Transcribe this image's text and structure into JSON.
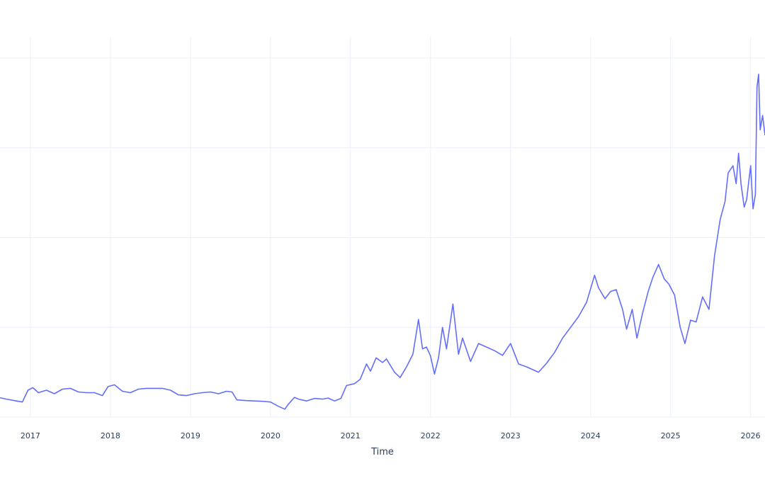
{
  "chart_data": {
    "type": "line",
    "xlabel": "Time",
    "ylabel": "",
    "x_tick_labels": [
      "2017",
      "2018",
      "2019",
      "2020",
      "2021",
      "2022",
      "2023",
      "2024",
      "2025",
      "2026"
    ],
    "xlim": [
      2016.62,
      2026.18
    ],
    "ylim": [
      0,
      100
    ],
    "ygrid_values": [
      0,
      25,
      50,
      75,
      100
    ],
    "grid": true,
    "colors": {
      "line": "#636efa",
      "grid": "#ebf0f8",
      "text": "#2a3f5f"
    },
    "series": [
      {
        "x": [
          2016.62,
          2016.7,
          2016.8,
          2016.9,
          2016.97,
          2017.03,
          2017.1,
          2017.2,
          2017.3,
          2017.4,
          2017.5,
          2017.6,
          2017.7,
          2017.8,
          2017.9,
          2017.97,
          2018.05,
          2018.15,
          2018.25,
          2018.35,
          2018.45,
          2018.55,
          2018.65,
          2018.75,
          2018.85,
          2018.95,
          2019.05,
          2019.15,
          2019.25,
          2019.35,
          2019.45,
          2019.52,
          2019.58,
          2019.7,
          2019.8,
          2019.9,
          2020.0,
          2020.1,
          2020.18,
          2020.22,
          2020.3,
          2020.35,
          2020.45,
          2020.55,
          2020.65,
          2020.72,
          2020.8,
          2020.88,
          2020.95,
          2021.05,
          2021.12,
          2021.2,
          2021.25,
          2021.32,
          2021.4,
          2021.45,
          2021.55,
          2021.62,
          2021.7,
          2021.78,
          2021.85,
          2021.9,
          2021.95,
          2022.0,
          2022.05,
          2022.1,
          2022.15,
          2022.2,
          2022.28,
          2022.35,
          2022.4,
          2022.5,
          2022.6,
          2022.7,
          2022.8,
          2022.9,
          2023.0,
          2023.1,
          2023.2,
          2023.3,
          2023.35,
          2023.45,
          2023.55,
          2023.65,
          2023.75,
          2023.85,
          2023.95,
          2024.05,
          2024.1,
          2024.18,
          2024.25,
          2024.32,
          2024.4,
          2024.45,
          2024.52,
          2024.58,
          2024.65,
          2024.72,
          2024.78,
          2024.85,
          2024.92,
          2024.98,
          2025.05,
          2025.12,
          2025.18,
          2025.25,
          2025.32,
          2025.4,
          2025.48,
          2025.55,
          2025.62,
          2025.68,
          2025.72,
          2025.78,
          2025.82,
          2025.85,
          2025.88,
          2025.92,
          2025.95,
          2026.0,
          2026.03,
          2026.06,
          2026.08,
          2026.1,
          2026.12,
          2026.15,
          2026.18
        ],
        "y": [
          5.4,
          5.0,
          4.6,
          4.2,
          7.5,
          8.2,
          6.8,
          7.5,
          6.5,
          7.8,
          8.0,
          7.0,
          6.8,
          6.8,
          6.0,
          8.5,
          9.0,
          7.2,
          6.8,
          7.8,
          8.0,
          8.0,
          8.0,
          7.5,
          6.2,
          6.0,
          6.5,
          6.8,
          7.0,
          6.5,
          7.2,
          7.0,
          4.8,
          4.6,
          4.5,
          4.4,
          4.2,
          3.0,
          2.2,
          3.5,
          5.5,
          5.0,
          4.5,
          5.2,
          5.0,
          5.3,
          4.5,
          5.2,
          8.8,
          9.3,
          10.5,
          14.8,
          12.8,
          16.5,
          15.2,
          16.2,
          12.5,
          11.0,
          14.0,
          17.5,
          27.2,
          19.0,
          19.5,
          17.0,
          12.0,
          16.5,
          25.0,
          19.0,
          31.5,
          17.5,
          22.0,
          15.5,
          20.5,
          19.5,
          18.5,
          17.2,
          20.5,
          14.8,
          14.0,
          13.0,
          12.5,
          15.0,
          18.0,
          22.0,
          25.0,
          28.0,
          32.0,
          39.5,
          36.0,
          33.0,
          35.0,
          35.5,
          30.0,
          24.5,
          30.0,
          22.0,
          29.0,
          35.0,
          39.0,
          42.5,
          38.5,
          37.0,
          34.0,
          25.0,
          20.5,
          27.0,
          26.5,
          33.5,
          30.0,
          45.0,
          55.0,
          60.0,
          68.0,
          70.0,
          65.0,
          73.5,
          65.0,
          58.5,
          60.5,
          70.0,
          58.0,
          62.0,
          92.0,
          95.5,
          80.0,
          84.0,
          78.5
        ]
      }
    ]
  }
}
